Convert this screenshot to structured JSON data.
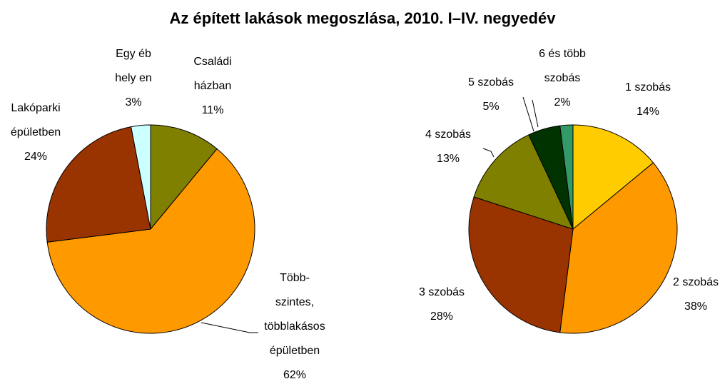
{
  "title": "Az épített lakások megoszlása, 2010. I–IV. negyedév",
  "chart_data": [
    {
      "type": "pie",
      "categories": [
        [
          "Családi",
          "házban"
        ],
        [
          "Több-",
          "szintes,",
          "többlakásos",
          "épületben"
        ],
        [
          "Lakóparki",
          "épületben"
        ],
        [
          "Egy éb",
          "hely en"
        ]
      ],
      "values": [
        11,
        62,
        24,
        3
      ],
      "value_labels": [
        "11%",
        "62%",
        "24%",
        "3%"
      ],
      "colors": [
        "#808000",
        "#ff9900",
        "#993300",
        "#ccffff"
      ]
    },
    {
      "type": "pie",
      "categories": [
        [
          "1 szobás"
        ],
        [
          "2 szobás"
        ],
        [
          "3 szobás"
        ],
        [
          "4 szobás"
        ],
        [
          "5 szobás"
        ],
        [
          "6 és több",
          "szobás"
        ]
      ],
      "values": [
        14,
        38,
        28,
        13,
        5,
        2
      ],
      "value_labels": [
        "14%",
        "38%",
        "28%",
        "13%",
        "5%",
        "2%"
      ],
      "colors": [
        "#ffcc00",
        "#ff9900",
        "#993300",
        "#808000",
        "#003300",
        "#339966"
      ]
    }
  ]
}
